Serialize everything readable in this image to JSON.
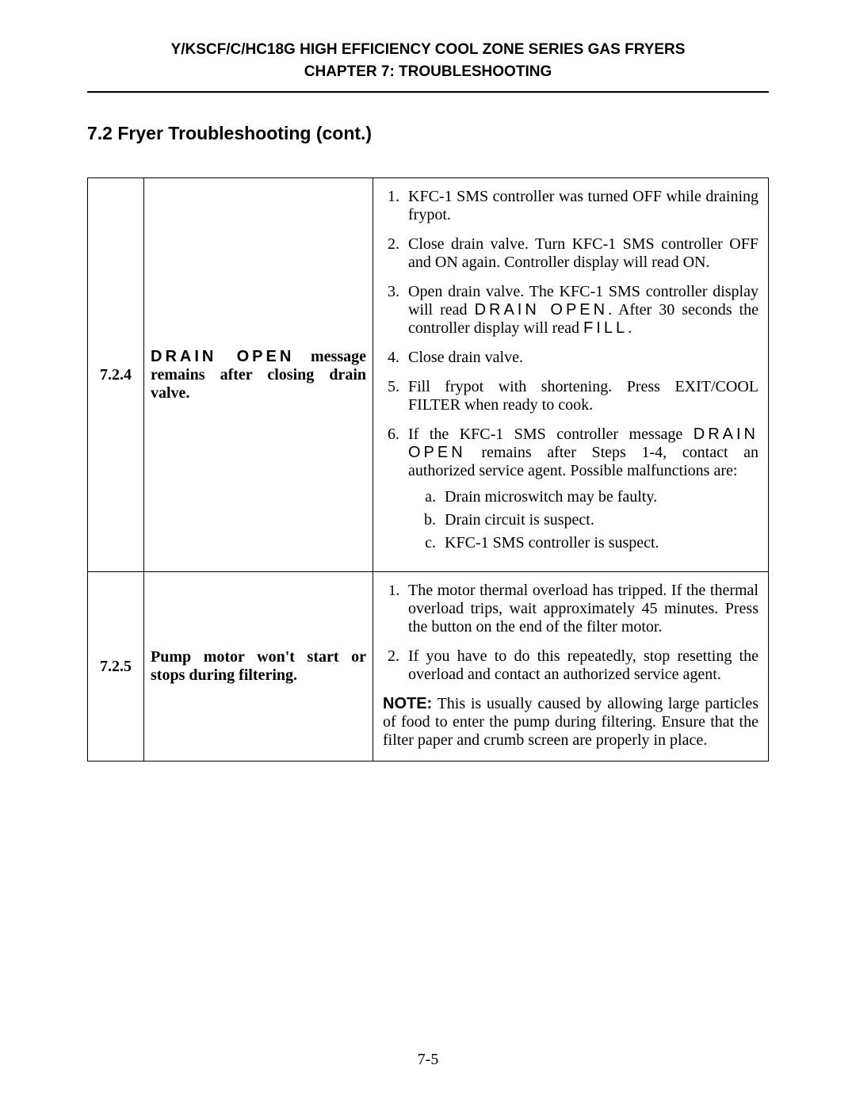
{
  "header": {
    "line1": "Y/KSCF/C/HC18G HIGH EFFICIENCY COOL ZONE SERIES GAS FRYERS",
    "line2": "CHAPTER 7:  TROUBLESHOOTING"
  },
  "section_title": "7.2  Fryer Troubleshooting (cont.)",
  "rows": [
    {
      "id": "7.2.4",
      "problem_code": "DRAIN OPEN",
      "problem_rest": " message remains after closing drain valve.",
      "steps": {
        "s1": "KFC-1 SMS controller was turned OFF while draining frypot.",
        "s2": "Close drain valve. Turn KFC-1 SMS controller OFF and ON again. Controller display will read ON.",
        "s3_pre": "Open drain valve.  The KFC-1 SMS controller display will read ",
        "s3_code1": "DRAIN OPEN",
        "s3_mid": ".  After 30 seconds the controller display will read ",
        "s3_code2": "FILL",
        "s3_post": ".",
        "s4": "Close drain valve.",
        "s5": "Fill frypot with shortening. Press EXIT/COOL FILTER when ready to cook.",
        "s6_pre": "If the KFC-1 SMS controller message ",
        "s6_code": "DRAIN OPEN",
        "s6_post": " remains after Steps 1-4, contact an authorized service agent. Possible malfunctions are:",
        "sub_a": "Drain microswitch may be faulty.",
        "sub_b": "Drain circuit is suspect.",
        "sub_c": "KFC-1 SMS controller is suspect."
      }
    },
    {
      "id": "7.2.5",
      "problem": "Pump motor won't start or stops during filtering.",
      "steps": {
        "s1": "The motor thermal overload has tripped. If the thermal overload trips, wait approximately 45 minutes. Press the button on the end of the filter motor.",
        "s2": "If you have to do this repeatedly, stop resetting the overload and contact an authorized service agent."
      },
      "note_label": "NOTE:",
      "note_text": " This is usually caused by allowing large particles of food to enter the pump during filtering. Ensure that the filter paper and crumb screen are properly in place."
    }
  ],
  "page_num": "7-5",
  "colors": {
    "text": "#000000",
    "bg": "#ffffff",
    "rule": "#000000"
  }
}
